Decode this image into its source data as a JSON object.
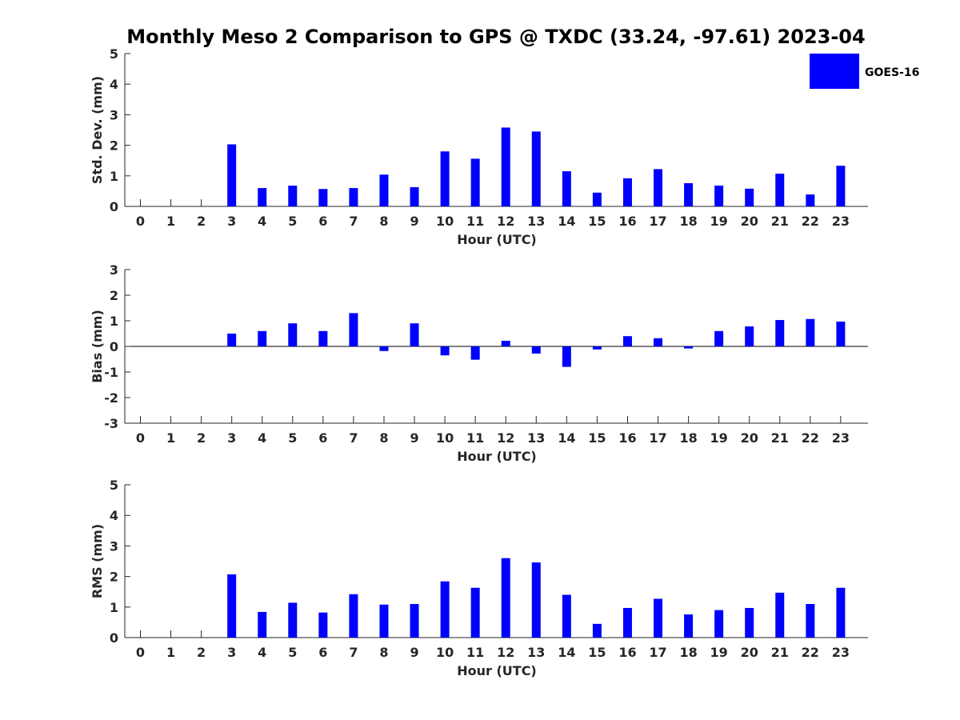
{
  "figure_title": "Monthly Meso 2 Comparison to GPS @ TXDC (33.24, -97.61) 2023-04",
  "legend": {
    "label": "GOES-16",
    "color": "#0000ff"
  },
  "bar_color": "#0000ff",
  "axis_color": "#262626",
  "chart_data": [
    {
      "type": "bar",
      "id": "stddev",
      "xlabel": "Hour (UTC)",
      "ylabel": "Std. Dev. (mm)",
      "ylim": [
        0,
        5
      ],
      "yticks": [
        0,
        1,
        2,
        3,
        4,
        5
      ],
      "categories": [
        "0",
        "1",
        "2",
        "3",
        "4",
        "5",
        "6",
        "7",
        "8",
        "9",
        "10",
        "11",
        "12",
        "13",
        "14",
        "15",
        "16",
        "17",
        "18",
        "19",
        "20",
        "21",
        "22",
        "23"
      ],
      "series": [
        {
          "name": "GOES-16",
          "values": [
            null,
            null,
            null,
            2.03,
            0.6,
            0.68,
            0.57,
            0.6,
            1.04,
            0.63,
            1.8,
            1.56,
            2.58,
            2.45,
            1.15,
            0.45,
            0.92,
            1.22,
            0.76,
            0.68,
            0.58,
            1.07,
            0.39,
            1.33
          ]
        }
      ]
    },
    {
      "type": "bar",
      "id": "bias",
      "xlabel": "Hour (UTC)",
      "ylabel": "Bias (mm)",
      "ylim": [
        -3,
        3
      ],
      "yticks": [
        -3,
        -2,
        -1,
        0,
        1,
        2,
        3
      ],
      "zero_line": true,
      "categories": [
        "0",
        "1",
        "2",
        "3",
        "4",
        "5",
        "6",
        "7",
        "8",
        "9",
        "10",
        "11",
        "12",
        "13",
        "14",
        "15",
        "16",
        "17",
        "18",
        "19",
        "20",
        "21",
        "22",
        "23"
      ],
      "series": [
        {
          "name": "GOES-16",
          "values": [
            null,
            null,
            null,
            0.5,
            0.6,
            0.9,
            0.6,
            1.3,
            -0.18,
            0.9,
            -0.35,
            -0.52,
            0.22,
            -0.28,
            -0.8,
            -0.12,
            0.4,
            0.32,
            -0.08,
            0.6,
            0.78,
            1.03,
            1.07,
            0.97
          ]
        }
      ]
    },
    {
      "type": "bar",
      "id": "rms",
      "xlabel": "Hour (UTC)",
      "ylabel": "RMS (mm)",
      "ylim": [
        0,
        5
      ],
      "yticks": [
        0,
        1,
        2,
        3,
        4,
        5
      ],
      "categories": [
        "0",
        "1",
        "2",
        "3",
        "4",
        "5",
        "6",
        "7",
        "8",
        "9",
        "10",
        "11",
        "12",
        "13",
        "14",
        "15",
        "16",
        "17",
        "18",
        "19",
        "20",
        "21",
        "22",
        "23"
      ],
      "series": [
        {
          "name": "GOES-16",
          "values": [
            null,
            null,
            null,
            2.07,
            0.84,
            1.14,
            0.82,
            1.42,
            1.08,
            1.1,
            1.84,
            1.63,
            2.6,
            2.46,
            1.4,
            0.45,
            0.97,
            1.27,
            0.76,
            0.9,
            0.97,
            1.47,
            1.1,
            1.63
          ]
        }
      ]
    }
  ]
}
